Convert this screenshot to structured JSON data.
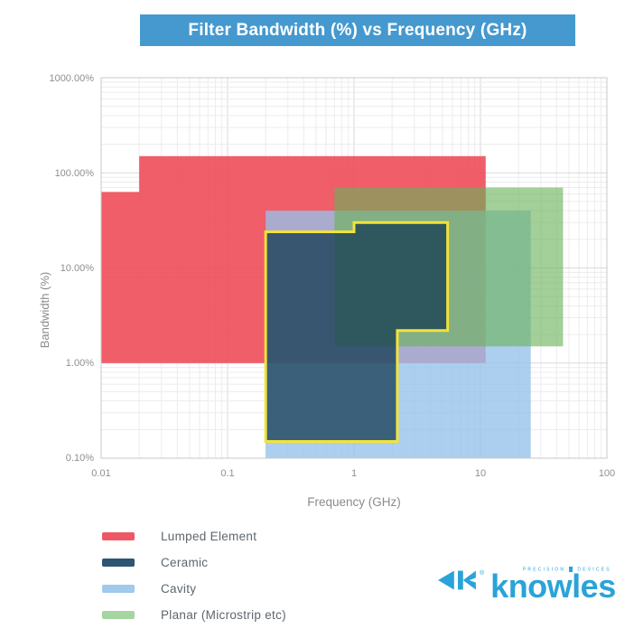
{
  "header": {
    "title": "Filter Bandwidth (%) vs Frequency (GHz)",
    "bg_color": "#4599cf"
  },
  "axes": {
    "x_label": "Frequency (GHz)",
    "y_label": "Bandwidth (%)",
    "x_ticks": [
      "0.01",
      "0.1",
      "1",
      "10",
      "100"
    ],
    "y_ticks": [
      "1000.00%",
      "100.00%",
      "10.00%",
      "1.00%",
      "0.10%"
    ]
  },
  "legend": {
    "items": [
      {
        "label": "Lumped Element",
        "color": "#ee5866"
      },
      {
        "label": "Ceramic",
        "color": "#2e5571"
      },
      {
        "label": "Cavity",
        "color": "#9fc9ed"
      },
      {
        "label": "Planar (Microstrip etc)",
        "color": "#a5d5a0"
      }
    ]
  },
  "logo": {
    "brand": "knowles",
    "tagline_left": "PRECISION",
    "tagline_right": "DEVICES",
    "color": "#2aa3d8",
    "registered_mark": "®"
  },
  "chart_data": {
    "type": "area",
    "title": "Filter Bandwidth (%) vs Frequency (GHz)",
    "xlabel": "Frequency (GHz)",
    "ylabel": "Bandwidth (%)",
    "x_axis": {
      "scale": "log",
      "min": 0.01,
      "max": 100,
      "ticks": [
        0.01,
        0.1,
        1,
        10,
        100
      ]
    },
    "y_axis": {
      "scale": "log",
      "min": 0.1,
      "max": 1000,
      "ticks": [
        1000,
        100,
        10,
        1,
        0.1
      ]
    },
    "grid": true,
    "layout": {
      "grid_minor_color": "#ececec",
      "grid_major_color": "#d9d9d9",
      "border_color": "#c9c9c9",
      "legend_position": "bottom-left"
    },
    "regions": [
      {
        "id": "lumped-element",
        "name": "Lumped Element",
        "fill": "rgba(238,77,90,0.90)",
        "vertices_ghz_pct": [
          [
            0.01,
            63
          ],
          [
            0.02,
            63
          ],
          [
            0.02,
            150
          ],
          [
            11,
            150
          ],
          [
            11,
            1
          ],
          [
            0.01,
            1
          ]
        ]
      },
      {
        "id": "cavity",
        "name": "Cavity",
        "fill": "rgba(150,193,234,0.78)",
        "vertices_ghz_pct": [
          [
            0.2,
            0.1
          ],
          [
            0.2,
            40
          ],
          [
            25,
            40
          ],
          [
            25,
            0.1
          ]
        ]
      },
      {
        "id": "planar",
        "name": "Planar (Microstrip etc)",
        "fill": "rgba(106,178,88,0.62)",
        "vertices_ghz_pct": [
          [
            0.7,
            1.5
          ],
          [
            0.7,
            70
          ],
          [
            45,
            70
          ],
          [
            45,
            1.5
          ]
        ]
      },
      {
        "id": "ceramic",
        "name": "Ceramic",
        "fill": "rgba(18,56,81,0.74)",
        "stroke": "#f2e338",
        "stroke_width": 3,
        "vertices_ghz_pct": [
          [
            0.2,
            0.15
          ],
          [
            0.2,
            24
          ],
          [
            1,
            24
          ],
          [
            1,
            30
          ],
          [
            5.5,
            30
          ],
          [
            5.5,
            2.2
          ],
          [
            2.2,
            2.2
          ],
          [
            2.2,
            0.15
          ]
        ]
      }
    ]
  }
}
